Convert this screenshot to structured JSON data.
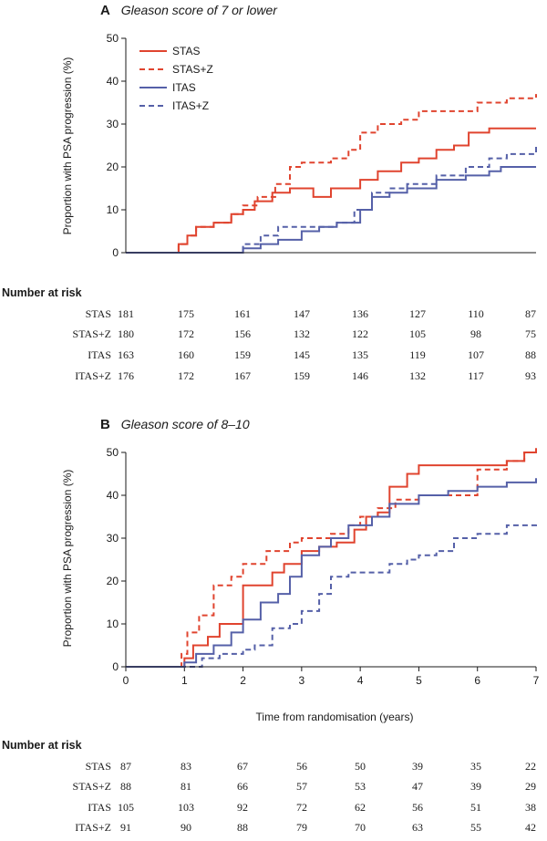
{
  "colors": {
    "stas": "#e0442f",
    "itas": "#5560a8",
    "axis": "#1a1a1a"
  },
  "chart_data": [
    {
      "type": "line",
      "panel": "A",
      "title": "Gleason score of 7 or lower",
      "xlabel": "",
      "ylabel": "Proportion with PSA progression (%)",
      "xlim": [
        0,
        7
      ],
      "ylim": [
        0,
        50
      ],
      "yticks": [
        0,
        10,
        20,
        30,
        40,
        50
      ],
      "xticks": [],
      "legend_position": "top-left",
      "series": [
        {
          "name": "STAS",
          "color": "#e0442f",
          "dash": false,
          "points": [
            [
              0,
              0
            ],
            [
              0.75,
              0
            ],
            [
              0.9,
              2
            ],
            [
              1.05,
              4
            ],
            [
              1.2,
              6
            ],
            [
              1.5,
              7
            ],
            [
              1.8,
              9
            ],
            [
              2.0,
              10
            ],
            [
              2.2,
              12
            ],
            [
              2.5,
              14
            ],
            [
              2.8,
              15
            ],
            [
              3.2,
              13
            ],
            [
              3.5,
              15
            ],
            [
              3.8,
              15
            ],
            [
              4.0,
              17
            ],
            [
              4.3,
              19
            ],
            [
              4.7,
              21
            ],
            [
              5.0,
              22
            ],
            [
              5.3,
              24
            ],
            [
              5.6,
              25
            ],
            [
              5.85,
              28
            ],
            [
              6.2,
              29
            ],
            [
              7.0,
              29
            ]
          ]
        },
        {
          "name": "STAS+Z",
          "color": "#e0442f",
          "dash": true,
          "points": [
            [
              0,
              0
            ],
            [
              0.75,
              0
            ],
            [
              0.9,
              2
            ],
            [
              1.05,
              4
            ],
            [
              1.2,
              6
            ],
            [
              1.5,
              7
            ],
            [
              1.8,
              9
            ],
            [
              2.0,
              11
            ],
            [
              2.25,
              13
            ],
            [
              2.55,
              16
            ],
            [
              2.8,
              20
            ],
            [
              3.0,
              21
            ],
            [
              3.5,
              22
            ],
            [
              3.8,
              24
            ],
            [
              4.0,
              28
            ],
            [
              4.3,
              30
            ],
            [
              4.7,
              31
            ],
            [
              5.0,
              33
            ],
            [
              5.8,
              33
            ],
            [
              6.0,
              35
            ],
            [
              6.5,
              36
            ],
            [
              7.0,
              37
            ]
          ]
        },
        {
          "name": "ITAS",
          "color": "#5560a8",
          "dash": false,
          "points": [
            [
              0,
              0
            ],
            [
              1.8,
              0
            ],
            [
              2.0,
              1
            ],
            [
              2.3,
              2
            ],
            [
              2.6,
              3
            ],
            [
              3.0,
              5
            ],
            [
              3.3,
              6
            ],
            [
              3.6,
              7
            ],
            [
              4.0,
              10
            ],
            [
              4.2,
              13
            ],
            [
              4.5,
              14
            ],
            [
              4.8,
              15
            ],
            [
              5.0,
              15
            ],
            [
              5.3,
              17
            ],
            [
              5.8,
              18
            ],
            [
              6.2,
              19
            ],
            [
              6.4,
              20
            ],
            [
              7.0,
              20
            ]
          ]
        },
        {
          "name": "ITAS+Z",
          "color": "#5560a8",
          "dash": true,
          "points": [
            [
              0,
              0
            ],
            [
              1.8,
              0
            ],
            [
              2.0,
              2
            ],
            [
              2.3,
              4
            ],
            [
              2.6,
              6
            ],
            [
              3.0,
              6
            ],
            [
              3.3,
              6
            ],
            [
              3.6,
              7
            ],
            [
              3.9,
              10
            ],
            [
              4.2,
              14
            ],
            [
              4.5,
              15
            ],
            [
              4.8,
              16
            ],
            [
              5.0,
              16
            ],
            [
              5.3,
              18
            ],
            [
              5.8,
              20
            ],
            [
              6.2,
              22
            ],
            [
              6.5,
              23
            ],
            [
              7.0,
              25
            ]
          ]
        }
      ],
      "number_at_risk": {
        "title": "Number at risk",
        "groups": [
          {
            "label": "STAS",
            "values": [
              "181",
              "175",
              "161",
              "147",
              "136",
              "127",
              "110",
              "87"
            ]
          },
          {
            "label": "STAS+Z",
            "values": [
              "180",
              "172",
              "156",
              "132",
              "122",
              "105",
              "98",
              "75"
            ]
          },
          {
            "label": "ITAS",
            "values": [
              "163",
              "160",
              "159",
              "145",
              "135",
              "119",
              "107",
              "88"
            ]
          },
          {
            "label": "ITAS+Z",
            "values": [
              "176",
              "172",
              "167",
              "159",
              "146",
              "132",
              "117",
              "93"
            ]
          }
        ]
      }
    },
    {
      "type": "line",
      "panel": "B",
      "title": "Gleason score of 8–10",
      "xlabel": "Time from randomisation (years)",
      "ylabel": "Proportion with PSA progression (%)",
      "xlim": [
        0,
        7
      ],
      "ylim": [
        0,
        50
      ],
      "yticks": [
        0,
        10,
        20,
        30,
        40,
        50
      ],
      "xticks": [
        0,
        1,
        2,
        3,
        4,
        5,
        6,
        7
      ],
      "legend_position": "none",
      "series": [
        {
          "name": "STAS",
          "color": "#e0442f",
          "dash": false,
          "points": [
            [
              0,
              0
            ],
            [
              0.8,
              0
            ],
            [
              1.0,
              2
            ],
            [
              1.15,
              5
            ],
            [
              1.4,
              7
            ],
            [
              1.6,
              10
            ],
            [
              2.0,
              19
            ],
            [
              2.3,
              19
            ],
            [
              2.5,
              22
            ],
            [
              2.7,
              24
            ],
            [
              3.0,
              27
            ],
            [
              3.3,
              28
            ],
            [
              3.6,
              29
            ],
            [
              3.9,
              32
            ],
            [
              4.1,
              35
            ],
            [
              4.3,
              36
            ],
            [
              4.5,
              42
            ],
            [
              4.8,
              45
            ],
            [
              5.0,
              47
            ],
            [
              6.0,
              47
            ],
            [
              6.5,
              48
            ],
            [
              6.8,
              50
            ],
            [
              7.0,
              51
            ]
          ]
        },
        {
          "name": "STAS+Z",
          "color": "#e0442f",
          "dash": true,
          "points": [
            [
              0,
              0
            ],
            [
              0.8,
              0
            ],
            [
              0.95,
              3
            ],
            [
              1.05,
              8
            ],
            [
              1.25,
              12
            ],
            [
              1.5,
              19
            ],
            [
              1.8,
              21
            ],
            [
              2.0,
              24
            ],
            [
              2.4,
              27
            ],
            [
              2.8,
              29
            ],
            [
              3.0,
              30
            ],
            [
              3.5,
              31
            ],
            [
              3.8,
              33
            ],
            [
              4.0,
              35
            ],
            [
              4.3,
              37
            ],
            [
              4.6,
              39
            ],
            [
              5.0,
              40
            ],
            [
              6.0,
              46
            ],
            [
              6.5,
              48
            ],
            [
              6.8,
              50
            ],
            [
              7.0,
              50
            ]
          ]
        },
        {
          "name": "ITAS",
          "color": "#5560a8",
          "dash": false,
          "points": [
            [
              0,
              0
            ],
            [
              0.8,
              0
            ],
            [
              1.0,
              1
            ],
            [
              1.2,
              3
            ],
            [
              1.5,
              5
            ],
            [
              1.8,
              8
            ],
            [
              2.0,
              11
            ],
            [
              2.3,
              15
            ],
            [
              2.6,
              17
            ],
            [
              2.8,
              21
            ],
            [
              3.0,
              26
            ],
            [
              3.3,
              28
            ],
            [
              3.5,
              30
            ],
            [
              3.8,
              33
            ],
            [
              4.2,
              35
            ],
            [
              4.5,
              38
            ],
            [
              5.0,
              40
            ],
            [
              5.5,
              41
            ],
            [
              6.0,
              42
            ],
            [
              6.5,
              43
            ],
            [
              7.0,
              44
            ]
          ]
        },
        {
          "name": "ITAS+Z",
          "color": "#5560a8",
          "dash": true,
          "points": [
            [
              0,
              0
            ],
            [
              1.0,
              0
            ],
            [
              1.3,
              2
            ],
            [
              1.6,
              3
            ],
            [
              2.0,
              4
            ],
            [
              2.2,
              5
            ],
            [
              2.5,
              9
            ],
            [
              2.8,
              10
            ],
            [
              3.0,
              13
            ],
            [
              3.3,
              17
            ],
            [
              3.5,
              21
            ],
            [
              3.8,
              22
            ],
            [
              4.2,
              22
            ],
            [
              4.5,
              24
            ],
            [
              4.8,
              25
            ],
            [
              5.0,
              26
            ],
            [
              5.3,
              27
            ],
            [
              5.6,
              30
            ],
            [
              6.0,
              31
            ],
            [
              6.5,
              33
            ],
            [
              7.0,
              34
            ]
          ]
        }
      ],
      "number_at_risk": {
        "title": "Number at risk",
        "groups": [
          {
            "label": "STAS",
            "values": [
              "87",
              "83",
              "67",
              "56",
              "50",
              "39",
              "35",
              "22"
            ]
          },
          {
            "label": "STAS+Z",
            "values": [
              "88",
              "81",
              "66",
              "57",
              "53",
              "47",
              "39",
              "29"
            ]
          },
          {
            "label": "ITAS",
            "values": [
              "105",
              "103",
              "92",
              "72",
              "62",
              "56",
              "51",
              "38"
            ]
          },
          {
            "label": "ITAS+Z",
            "values": [
              "91",
              "90",
              "88",
              "79",
              "70",
              "63",
              "55",
              "42"
            ]
          }
        ]
      }
    }
  ]
}
